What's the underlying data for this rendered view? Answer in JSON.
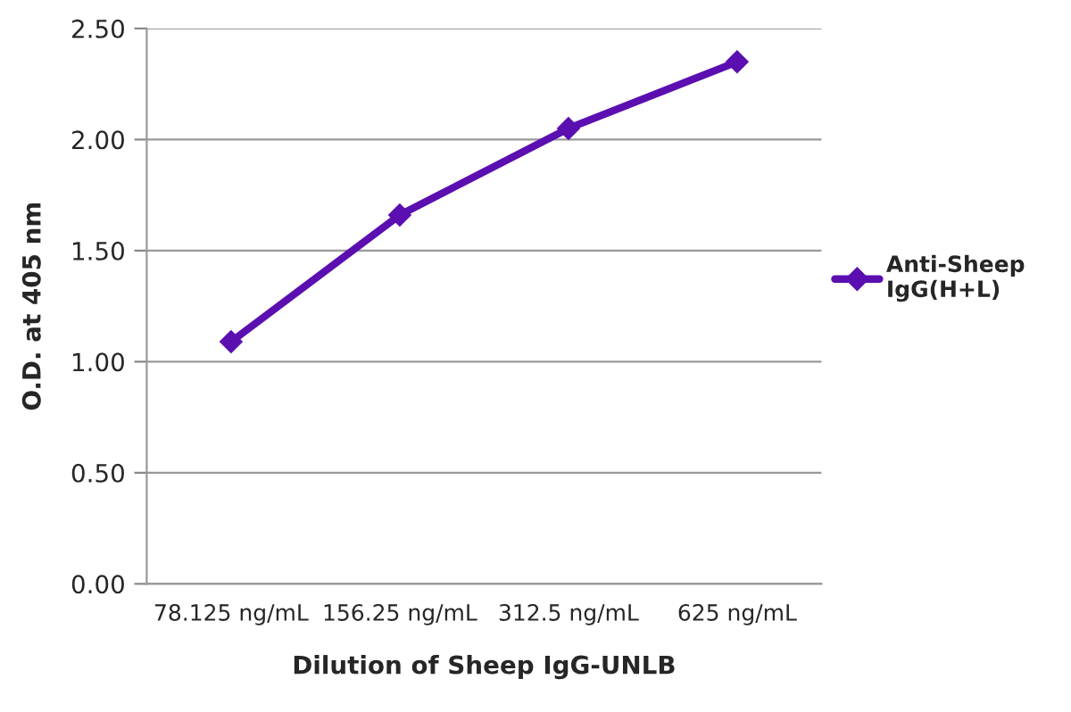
{
  "chart_data": {
    "type": "line",
    "xlabel": "Dilution of Sheep IgG-UNLB",
    "ylabel": "O.D. at 405 nm",
    "categories": [
      "78.125 ng/mL",
      "156.25 ng/mL",
      "312.5 ng/mL",
      "625 ng/mL"
    ],
    "series": [
      {
        "name": "Anti-Sheep\nIgG(H+L)",
        "color": "#5b0fb0",
        "values": [
          1.09,
          1.66,
          2.05,
          2.35
        ]
      }
    ],
    "ylim": [
      0,
      2.5
    ],
    "yticks": [
      {
        "value": 0,
        "label": "0.00"
      },
      {
        "value": 0.5,
        "label": "0.50"
      },
      {
        "value": 1,
        "label": "1.00"
      },
      {
        "value": 1.5,
        "label": "1.50"
      },
      {
        "value": 2,
        "label": "2.00"
      },
      {
        "value": 2.5,
        "label": "2.50"
      }
    ],
    "grid": "y",
    "legend": "right",
    "marker": "diamond",
    "line_style": "solid"
  }
}
